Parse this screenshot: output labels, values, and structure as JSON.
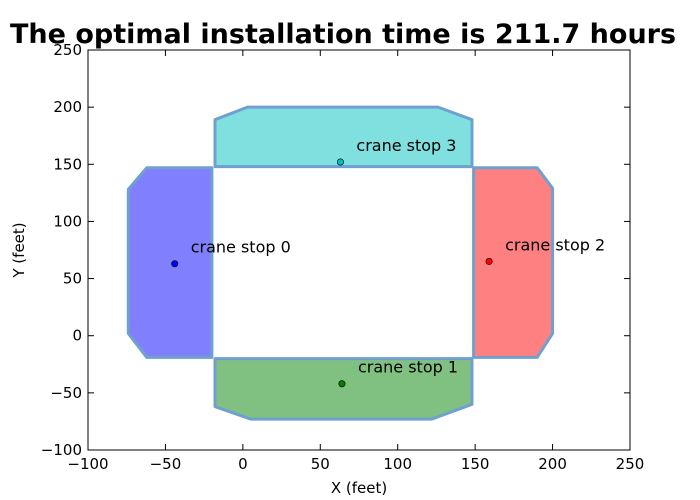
{
  "chart_data": {
    "type": "scatter",
    "title": "The optimal installation time is  211.7 hours",
    "xlabel": "X (feet)",
    "ylabel": "Y (feet)",
    "xlim": [
      -100,
      250
    ],
    "ylim": [
      -100,
      250
    ],
    "xticks": [
      -100,
      -50,
      0,
      50,
      100,
      150,
      200,
      250
    ],
    "yticks": [
      -100,
      -50,
      0,
      50,
      100,
      150,
      200,
      250
    ],
    "xtick_labels": [
      "−100",
      "−50",
      "0",
      "50",
      "100",
      "150",
      "200",
      "250"
    ],
    "ytick_labels": [
      "−100",
      "−50",
      "0",
      "50",
      "100",
      "150",
      "200",
      "250"
    ],
    "grid": false,
    "regions": [
      {
        "color": "#8080ff",
        "points": [
          [
            -20,
            147
          ],
          [
            -62,
            147
          ],
          [
            -74,
            128
          ],
          [
            -74,
            2
          ],
          [
            -62,
            -19
          ],
          [
            -20,
            -19
          ]
        ]
      },
      {
        "color": "#80c080",
        "points": [
          [
            -18,
            -20
          ],
          [
            148,
            -20
          ],
          [
            148,
            -60
          ],
          [
            122,
            -73
          ],
          [
            5,
            -73
          ],
          [
            -18,
            -62
          ]
        ]
      },
      {
        "color": "#ff8080",
        "points": [
          [
            149,
            147
          ],
          [
            190,
            147
          ],
          [
            200,
            129
          ],
          [
            200,
            2
          ],
          [
            190,
            -19
          ],
          [
            149,
            -19
          ]
        ]
      },
      {
        "color": "#80e0e0",
        "points": [
          [
            -18,
            148
          ],
          [
            148,
            148
          ],
          [
            148,
            189
          ],
          [
            126,
            200
          ],
          [
            3,
            200
          ],
          [
            -18,
            189
          ]
        ]
      }
    ],
    "region_edge_color": "#6fa0d0",
    "points": [
      {
        "x": -44,
        "y": 63,
        "color": "#0000ff",
        "label": "crane stop 0"
      },
      {
        "x": 64,
        "y": -42,
        "color": "#008000",
        "label": "crane stop 1"
      },
      {
        "x": 159,
        "y": 65,
        "color": "#ff0000",
        "label": "crane stop 2"
      },
      {
        "x": 63,
        "y": 152,
        "color": "#00bfbf",
        "label": "crane stop 3"
      }
    ]
  }
}
